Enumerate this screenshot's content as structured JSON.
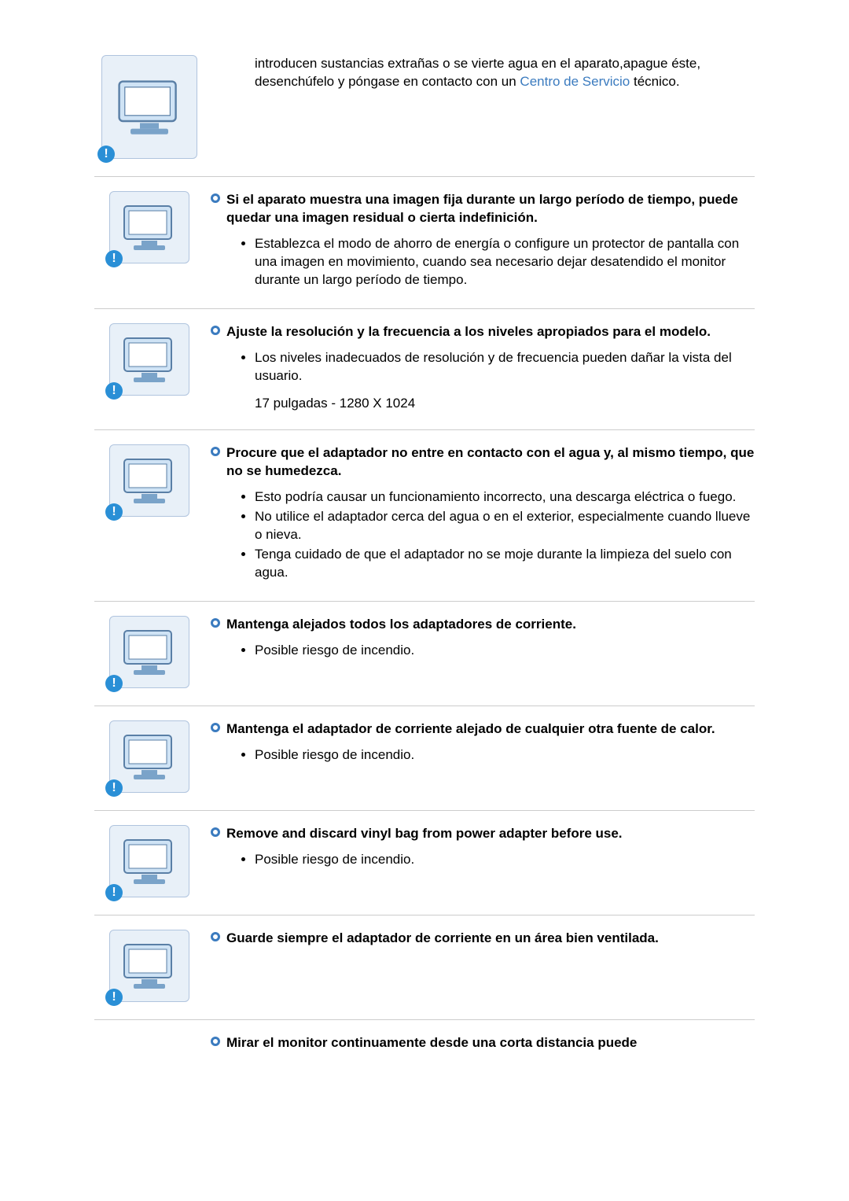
{
  "sections": [
    {
      "id": "foreign-substances",
      "icon": "monitor-boom",
      "heading": null,
      "intro_before": "introducen sustancias extrañas o se vierte agua en el aparato,apague éste, desenchúfelo y póngase en contacto con un ",
      "link_text": "Centro de Servicio",
      "intro_after": " técnico.",
      "points": [],
      "extra": null
    },
    {
      "id": "fixed-image",
      "icon": "monitor-ghost",
      "heading": "Si el aparato muestra una imagen fija durante un largo período de tiempo, puede quedar una imagen residual o cierta indefinición.",
      "points": [
        "Establezca el modo de ahorro de energía o configure un protector de pantalla con una imagen en movimiento, cuando sea necesario dejar desatendido el monitor durante un largo período de tiempo."
      ],
      "extra": null
    },
    {
      "id": "resolution",
      "icon": "monitor-wave",
      "heading": "Ajuste la resolución y la frecuencia a los niveles apropiados para el modelo.",
      "points": [
        "Los niveles inadecuados de resolución y de frecuencia pueden dañar la vista del usuario."
      ],
      "extra": "17 pulgadas - 1280 X 1024"
    },
    {
      "id": "adapter-water",
      "icon": "monitor-water-x",
      "heading": "Procure que el adaptador no entre en contacto con el agua y, al mismo tiempo, que no se humedezca.",
      "points": [
        "Esto podría causar un funcionamiento incorrecto, una descarga eléctrica o fuego.",
        "No utilice el adaptador cerca del agua o en el exterior, especialmente cuando llueve o nieva.",
        "Tenga cuidado de que el adaptador no se moje durante la limpieza del suelo con agua."
      ],
      "extra": null
    },
    {
      "id": "adapters-apart",
      "icon": "monitor-adapter-shock",
      "heading": "Mantenga alejados todos los adaptadores de corriente.",
      "points": [
        "Posible riesgo de incendio."
      ],
      "extra": null
    },
    {
      "id": "adapter-heat",
      "icon": "heater-adapter",
      "heading": "Mantenga el adaptador de corriente alejado de cualquier otra fuente de calor.",
      "points": [
        "Posible riesgo de incendio."
      ],
      "extra": null
    },
    {
      "id": "vinyl-bag",
      "icon": "monitor-bag",
      "heading": "Remove and discard vinyl bag from power adapter before use.",
      "points": [
        "Posible riesgo de incendio."
      ],
      "extra": null
    },
    {
      "id": "ventilated",
      "icon": "window-adapter",
      "heading": "Guarde siempre el adaptador de corriente en un área bien ventilada.",
      "points": [],
      "extra": null
    },
    {
      "id": "short-distance",
      "icon": null,
      "heading": "Mirar el monitor continuamente desde una corta distancia puede",
      "points": [],
      "extra": null,
      "no_border": true
    }
  ],
  "badge_char": "!",
  "colors": {
    "ring": "#3b7bbf",
    "link": "#3b7bbf",
    "badge": "#2a8fd6",
    "rule": "#cccccc"
  }
}
